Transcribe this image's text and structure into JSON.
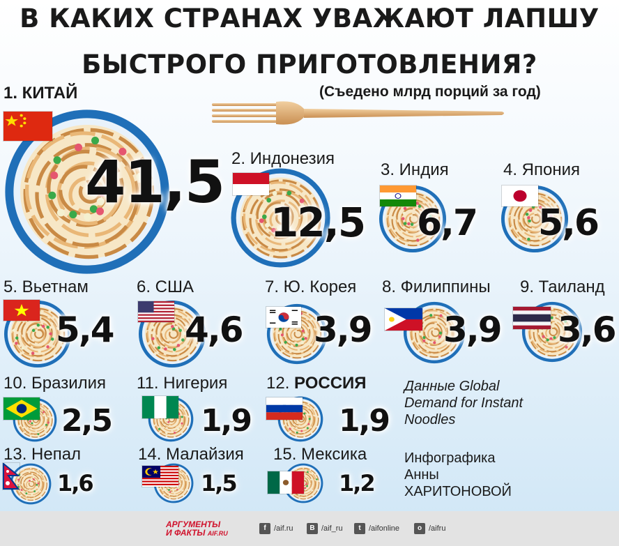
{
  "header": {
    "title_line1": "В КАКИХ СТРАНАХ УВАЖАЮТ ЛАПШУ",
    "title_line2": "БЫСТРОГО ПРИГОТОВЛЕНИЯ?",
    "subtitle": "(Съедено млрд порций за год)"
  },
  "chart_data": {
    "type": "table",
    "title": "В КАКИХ СТРАНАХ УВАЖАЮТ ЛАПШУ БЫСТРОГО ПРИГОТОВЛЕНИЯ?",
    "unit": "(Съедено млрд порций за год)",
    "items": [
      {
        "label": "1. КИТАЙ",
        "value": "41,5",
        "num": 41.5
      },
      {
        "label": "2. Индонезия",
        "value": "12,5",
        "num": 12.5
      },
      {
        "label": "3. Индия",
        "value": "6,7",
        "num": 6.7
      },
      {
        "label": "4. Япония",
        "value": "5,6",
        "num": 5.6
      },
      {
        "label": "5. Вьетнам",
        "value": "5,4",
        "num": 5.4
      },
      {
        "label": "6. США",
        "value": "4,6",
        "num": 4.6
      },
      {
        "label": "7. Ю. Корея",
        "value": "3,9",
        "num": 3.9
      },
      {
        "label": "8. Филиппины",
        "value": "3,9",
        "num": 3.9
      },
      {
        "label": "9. Таиланд",
        "value": "3,6",
        "num": 3.6
      },
      {
        "label": "10. Бразилия",
        "value": "2,5",
        "num": 2.5
      },
      {
        "label": "11. Нигерия",
        "value": "1,9",
        "num": 1.9
      },
      {
        "label": "12. ",
        "label_bold": "РОССИЯ",
        "value": "1,9",
        "num": 1.9
      },
      {
        "label": "13. Непал",
        "value": "1,6",
        "num": 1.6
      },
      {
        "label": "14. Малайзия",
        "value": "1,5",
        "num": 1.5
      },
      {
        "label": "15. Мексика",
        "value": "1,2",
        "num": 1.2
      }
    ]
  },
  "notes": {
    "source": [
      "Данные Global",
      "Demand for Instant",
      "Noodles"
    ],
    "credit": [
      "Инфографика",
      "Анны",
      "ХАРИТОНОВОЙ"
    ]
  },
  "footer": {
    "brand_line1": "АРГУМЕНТЫ",
    "brand_line2": "И ФАКТЫ",
    "brand_site": "AIF.RU",
    "social": [
      {
        "icon": "facebook-icon",
        "glyph": "f",
        "text": "/aif.ru"
      },
      {
        "icon": "vk-icon",
        "glyph": "В",
        "text": "/aif_ru"
      },
      {
        "icon": "twitter-icon",
        "glyph": "t",
        "text": "/aifonline"
      },
      {
        "icon": "odnoklassniki-icon",
        "glyph": "о",
        "text": "/aifru"
      }
    ]
  },
  "colors": {
    "noodle": "#e9b777",
    "noodle_dark": "#c98a45",
    "plate_rim": "#1f6fb8",
    "plate_inner": "#f7e7c6",
    "brand_red": "#d0112b"
  }
}
